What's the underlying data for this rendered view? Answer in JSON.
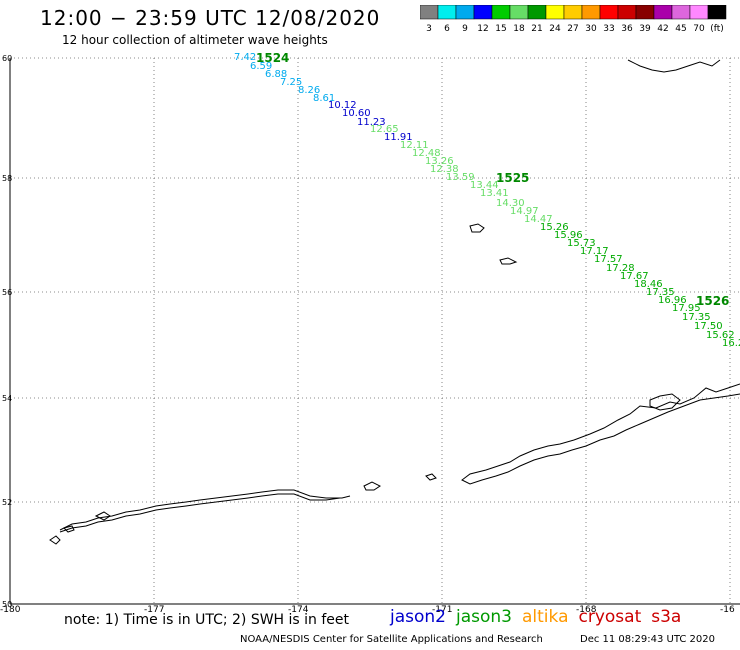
{
  "header": {
    "title": "12:00 − 23:59 UTC 12/08/2020",
    "subtitle": "12 hour collection of altimeter wave heights"
  },
  "legend": {
    "colors": [
      "#808080",
      "#00eeee",
      "#00aaee",
      "#0000ff",
      "#00cc00",
      "#66dd66",
      "#009900",
      "#ffff00",
      "#ffcc00",
      "#ff9900",
      "#ff0000",
      "#cc0000",
      "#880000",
      "#aa00aa",
      "#dd66dd",
      "#ff88ff",
      "#000000"
    ],
    "labels": [
      "3",
      "6",
      "9",
      "12",
      "15",
      "18",
      "21",
      "24",
      "27",
      "30",
      "33",
      "36",
      "39",
      "42",
      "45",
      "70",
      "(ft)"
    ]
  },
  "axes": {
    "lat_labels": [
      "60",
      "58",
      "56",
      "54",
      "52",
      "50"
    ],
    "lon_labels": [
      "-180",
      "-177",
      "-174",
      "-171",
      "-168",
      "-16"
    ]
  },
  "passes": [
    {
      "label": "1524",
      "color": "#008800"
    },
    {
      "label": "1525",
      "color": "#008800"
    },
    {
      "label": "1526",
      "color": "#008800"
    }
  ],
  "wave_heights": [
    {
      "v": "7.42",
      "c": "#00aaee"
    },
    {
      "v": "6.59",
      "c": "#00aaee"
    },
    {
      "v": "6.88",
      "c": "#00aaee"
    },
    {
      "v": "7.25",
      "c": "#00aaee"
    },
    {
      "v": "8.26",
      "c": "#00aaee"
    },
    {
      "v": "8.61",
      "c": "#00aaee"
    },
    {
      "v": "10.12",
      "c": "#0000cc"
    },
    {
      "v": "10.60",
      "c": "#0000cc"
    },
    {
      "v": "11.23",
      "c": "#0000cc"
    },
    {
      "v": "12.65",
      "c": "#66dd66"
    },
    {
      "v": "11.91",
      "c": "#0000cc"
    },
    {
      "v": "12.11",
      "c": "#66dd66"
    },
    {
      "v": "12.48",
      "c": "#66dd66"
    },
    {
      "v": "13.26",
      "c": "#66dd66"
    },
    {
      "v": "12.38",
      "c": "#66dd66"
    },
    {
      "v": "13.59",
      "c": "#66dd66"
    },
    {
      "v": "13.44",
      "c": "#66dd66"
    },
    {
      "v": "13.41",
      "c": "#66dd66"
    },
    {
      "v": "14.30",
      "c": "#66dd66"
    },
    {
      "v": "14.97",
      "c": "#66dd66"
    },
    {
      "v": "14.47",
      "c": "#66dd66"
    },
    {
      "v": "15.26",
      "c": "#00aa00"
    },
    {
      "v": "15.96",
      "c": "#00aa00"
    },
    {
      "v": "15.73",
      "c": "#00aa00"
    },
    {
      "v": "17.17",
      "c": "#00aa00"
    },
    {
      "v": "17.57",
      "c": "#00aa00"
    },
    {
      "v": "17.28",
      "c": "#00aa00"
    },
    {
      "v": "17.67",
      "c": "#00aa00"
    },
    {
      "v": "18.46",
      "c": "#00aa00"
    },
    {
      "v": "17.35",
      "c": "#00aa00"
    },
    {
      "v": "16.96",
      "c": "#00aa00"
    },
    {
      "v": "17.95",
      "c": "#00aa00"
    },
    {
      "v": "17.35",
      "c": "#00aa00"
    },
    {
      "v": "17.50",
      "c": "#00aa00"
    },
    {
      "v": "15.62",
      "c": "#00aa00"
    },
    {
      "v": "16.2",
      "c": "#00aa00"
    }
  ],
  "footer": {
    "note": "note: 1) Time is in UTC; 2) SWH is in feet",
    "satellites": [
      {
        "name": "jason2",
        "color": "#0000cc"
      },
      {
        "name": "jason3",
        "color": "#009900"
      },
      {
        "name": "altika",
        "color": "#ff9900"
      },
      {
        "name": "cryosat",
        "color": "#cc0000"
      },
      {
        "name": "s3a",
        "color": "#cc0000"
      }
    ],
    "credit": "NOAA/NESDIS Center for Satellite Applications and Research",
    "timestamp": "Dec 11 08:29:43 UTC 2020"
  }
}
